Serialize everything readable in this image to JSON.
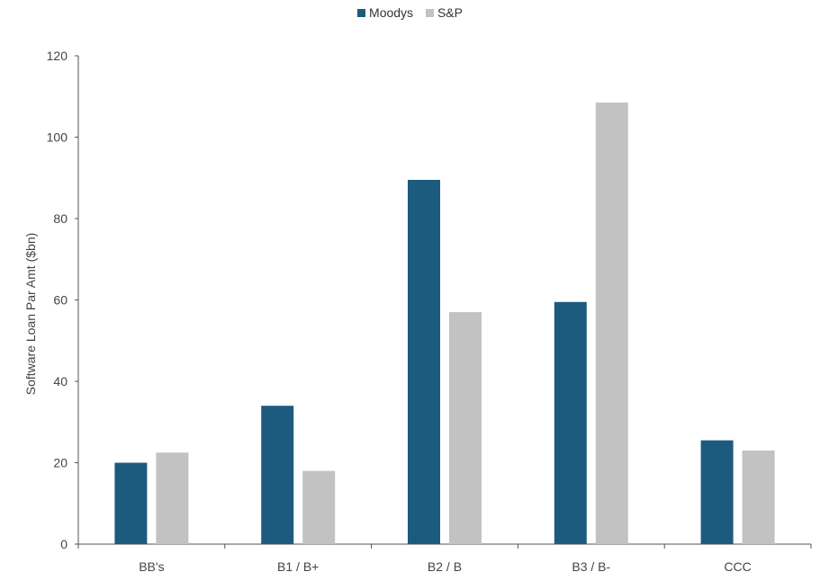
{
  "chart_data": {
    "type": "bar",
    "categories": [
      "BB's",
      "B1 / B+",
      "B2 / B",
      "B3 / B-",
      "CCC"
    ],
    "series": [
      {
        "name": "Moodys",
        "values": [
          20,
          34,
          89.5,
          59.5,
          25.5
        ],
        "color": "#1c5b7e"
      },
      {
        "name": "S&P",
        "values": [
          22.5,
          18,
          57,
          108.5,
          23
        ],
        "color": "#c2c2c2"
      }
    ],
    "title": "",
    "xlabel": "",
    "ylabel": "Software Loan Par Amt ($bn)",
    "ylim": [
      0,
      120
    ],
    "yticks": [
      0,
      20,
      40,
      60,
      80,
      100,
      120
    ],
    "grid": false,
    "legend_position": "top-center"
  }
}
